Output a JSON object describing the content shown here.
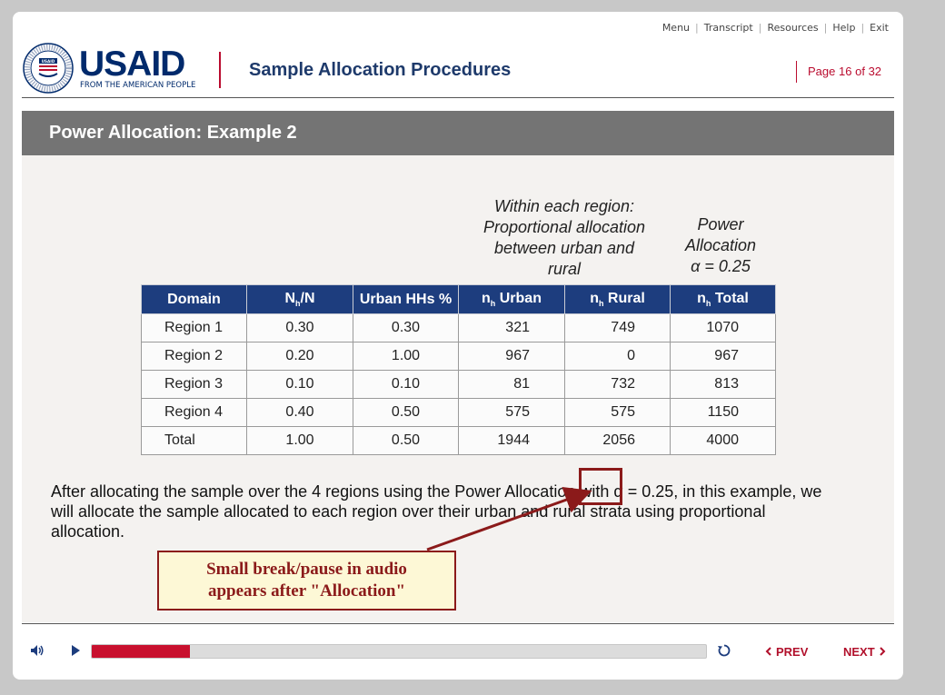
{
  "nav": {
    "menu": "Menu",
    "transcript": "Transcript",
    "resources": "Resources",
    "help": "Help",
    "exit": "Exit",
    "separator": "|"
  },
  "header": {
    "logo_word": "USAID",
    "logo_tagline": "FROM THE AMERICAN PEOPLE",
    "seal_text": "UNITED STATES AGENCY INTERNATIONAL DEVELOPMENT",
    "course_title": "Sample Allocation Procedures",
    "page_label": "Page",
    "page_current": "16",
    "page_of": "of",
    "page_total": "32"
  },
  "slide": {
    "title": "Power Allocation: Example 2",
    "note_region": "Within each region: Proportional allocation between urban and rural",
    "note_power_line1": "Power",
    "note_power_line2": "Allocation",
    "note_power_line3": "α = 0.25",
    "table": {
      "headers": {
        "domain": "Domain",
        "nh_n_main": "N",
        "nh_n_sub": "h",
        "nh_n_tail": "/N",
        "urban_pct": "Urban HHs %",
        "n_urban_main": "n",
        "n_urban_sub": "h",
        "n_urban_tail": " Urban",
        "n_rural_main": "n",
        "n_rural_sub": "h",
        "n_rural_tail": " Rural",
        "n_total_main": "n",
        "n_total_sub": "h",
        "n_total_tail": " Total"
      },
      "rows": [
        {
          "domain": "Region 1",
          "share": "0.30",
          "urban_pct": "0.30",
          "urban": "321",
          "rural": "749",
          "total": "1070"
        },
        {
          "domain": "Region 2",
          "share": "0.20",
          "urban_pct": "1.00",
          "urban": "967",
          "rural": "0",
          "total": "967"
        },
        {
          "domain": "Region 3",
          "share": "0.10",
          "urban_pct": "0.10",
          "urban": "81",
          "rural": "732",
          "total": "813"
        },
        {
          "domain": "Region 4",
          "share": "0.40",
          "urban_pct": "0.50",
          "urban": "575",
          "rural": "575",
          "total": "1150"
        },
        {
          "domain": "Total",
          "share": "1.00",
          "urban_pct": "0.50",
          "urban": "1944",
          "rural": "2056",
          "total": "4000"
        }
      ]
    },
    "body_text": "After allocating the sample over the 4 regions using the Power Allocation with α = 0.25, in this example, we will allocate the sample allocated to each region over their urban and rural strata using proportional allocation.",
    "callout_line1": "Small break/pause in audio",
    "callout_line2": "appears after \"Allocation\""
  },
  "player": {
    "progress_fraction": 0.16,
    "prev_label": "PREV",
    "next_label": "NEXT",
    "icons": {
      "mute": "speaker-icon",
      "play": "play-icon",
      "replay": "replay-icon",
      "prev": "chevron-left-icon",
      "next": "chevron-right-icon"
    }
  },
  "colors": {
    "brand_navy": "#002a6c",
    "brand_red": "#ba0c2f",
    "table_header": "#1d3d7e",
    "title_bar": "#747474",
    "callout_bg": "#fdf8d6",
    "callout_border": "#8b1a1a"
  }
}
